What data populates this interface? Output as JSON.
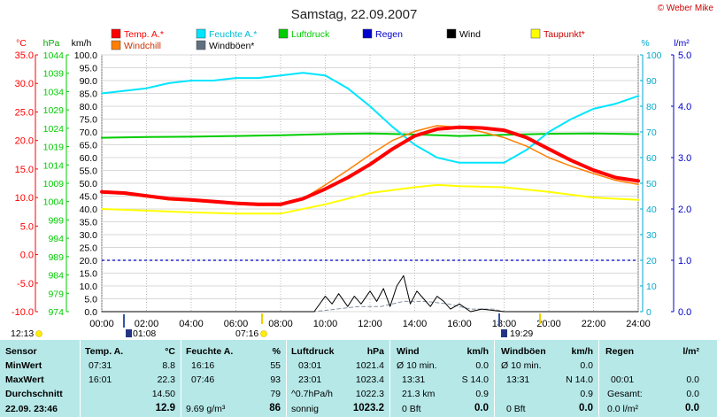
{
  "title": "Samstag, 22.09.2007",
  "credit": "© Weber Mike",
  "colors": {
    "temp": "#ff0000",
    "humidity": "#00e5ff",
    "pressure": "#00cc00",
    "rain": "#0000cc",
    "wind": "#000000",
    "dewpoint": "#ffff00",
    "windchill": "#ff7f00",
    "gust": "#607080"
  },
  "legend": {
    "row1": [
      {
        "label": "Temp. A.*",
        "color": "#ff0000"
      },
      {
        "label": "Feuchte A.*",
        "color": "#00e5ff"
      },
      {
        "label": "Luftdruck",
        "color": "#00cc00"
      },
      {
        "label": "Regen",
        "color": "#0000cc"
      },
      {
        "label": "Wind",
        "color": "#000000"
      },
      {
        "label": "Taupunkt*",
        "color": "#ffff00"
      }
    ],
    "row2": [
      {
        "label": "Windchill",
        "color": "#ff7f00"
      },
      {
        "label": "Windböen*",
        "color": "#607080"
      }
    ]
  },
  "chart_data": {
    "type": "line",
    "x_ticks": [
      "00:00",
      "02:00",
      "04:00",
      "06:00",
      "08:00",
      "10:00",
      "12:00",
      "14:00",
      "16:00",
      "18:00",
      "20:00",
      "22:00",
      "24:00"
    ],
    "axes": {
      "temp": {
        "unit": "°C",
        "ticks": [
          "35.0",
          "30.0",
          "25.0",
          "20.0",
          "15.0",
          "10.0",
          "5.0",
          "0.0",
          "-5.0",
          "-10.0"
        ],
        "ylim": [
          -10,
          35
        ],
        "color": "#ff0000"
      },
      "pressure": {
        "unit": "hPa",
        "ticks": [
          "1044",
          "1039",
          "1034",
          "1029",
          "1024",
          "1019",
          "1014",
          "1009",
          "1004",
          "999",
          "994",
          "989",
          "984",
          "979",
          "974"
        ],
        "ylim": [
          974,
          1044
        ],
        "color": "#00cc00"
      },
      "wind": {
        "unit": "km/h",
        "ticks": [
          "100.0",
          "95.0",
          "90.0",
          "85.0",
          "80.0",
          "75.0",
          "70.0",
          "65.0",
          "60.0",
          "55.0",
          "50.0",
          "45.0",
          "40.0",
          "35.0",
          "30.0",
          "25.0",
          "20.0",
          "15.0",
          "10.0",
          "5.0",
          "0.0"
        ],
        "ylim": [
          0,
          100
        ],
        "color": "#000000"
      },
      "humidity": {
        "unit": "%",
        "ticks": [
          "100",
          "90",
          "80",
          "70",
          "60",
          "50",
          "40",
          "30",
          "20",
          "10",
          "0"
        ],
        "ylim": [
          0,
          100
        ],
        "color": "#00aacc"
      },
      "rain": {
        "unit": "l/m²",
        "ticks": [
          "5.0",
          "4.0",
          "3.0",
          "2.0",
          "1.0",
          "0.0"
        ],
        "ylim": [
          0,
          5
        ],
        "color": "#0000cc"
      }
    },
    "series": [
      {
        "name": "Temp. A.*",
        "axis": "temp",
        "color": "#ff0000",
        "width": 4,
        "x": [
          0,
          1,
          2,
          3,
          4,
          5,
          6,
          7,
          8,
          9,
          10,
          11,
          12,
          13,
          14,
          15,
          16,
          17,
          18,
          19,
          20,
          21,
          22,
          23,
          24
        ],
        "y": [
          11.0,
          10.8,
          10.3,
          9.8,
          9.6,
          9.3,
          9.0,
          8.8,
          8.8,
          9.8,
          11.5,
          13.5,
          15.8,
          18.5,
          20.8,
          22.0,
          22.3,
          22.2,
          21.8,
          20.5,
          18.5,
          16.5,
          14.8,
          13.5,
          12.9
        ]
      },
      {
        "name": "Windchill",
        "axis": "temp",
        "color": "#ff7f00",
        "width": 1.5,
        "x": [
          0,
          1,
          2,
          3,
          4,
          5,
          6,
          7,
          8,
          9,
          10,
          11,
          12,
          13,
          14,
          15,
          16,
          17,
          18,
          19,
          20,
          21,
          22,
          23,
          24
        ],
        "y": [
          10.8,
          10.6,
          10.1,
          9.6,
          9.4,
          9.1,
          8.8,
          8.6,
          8.6,
          9.8,
          12.2,
          14.8,
          17.5,
          20.0,
          21.6,
          22.6,
          22.3,
          21.5,
          20.5,
          19.0,
          17.0,
          15.5,
          14.2,
          13.0,
          12.3
        ]
      },
      {
        "name": "Feuchte A.*",
        "axis": "humidity",
        "color": "#00e5ff",
        "width": 2,
        "x": [
          0,
          1,
          2,
          3,
          4,
          5,
          6,
          7,
          8,
          9,
          10,
          11,
          12,
          13,
          14,
          15,
          16,
          17,
          18,
          19,
          20,
          21,
          22,
          23,
          24
        ],
        "y": [
          85,
          86,
          87,
          89,
          90,
          90,
          91,
          91,
          92,
          93,
          92,
          87,
          80,
          72,
          65,
          60,
          58,
          58,
          58,
          63,
          70,
          75,
          79,
          81,
          84
        ]
      },
      {
        "name": "Luftdruck",
        "axis": "pressure",
        "color": "#00cc00",
        "width": 2,
        "x": [
          0,
          2,
          4,
          6,
          8,
          10,
          12,
          14,
          16,
          18,
          20,
          22,
          24
        ],
        "y": [
          1021.4,
          1021.6,
          1021.7,
          1021.9,
          1022.1,
          1022.4,
          1022.6,
          1022.3,
          1021.9,
          1022.2,
          1022.5,
          1022.6,
          1022.4
        ]
      },
      {
        "name": "Taupunkt*",
        "axis": "temp",
        "color": "#ffff00",
        "width": 2,
        "x": [
          0,
          2,
          4,
          6,
          8,
          10,
          12,
          14,
          15,
          16,
          18,
          20,
          22,
          24
        ],
        "y": [
          8.0,
          7.7,
          7.4,
          7.2,
          7.2,
          8.8,
          10.8,
          11.8,
          12.2,
          12.0,
          11.8,
          11.0,
          10.0,
          9.6
        ]
      },
      {
        "name": "Wind",
        "axis": "wind",
        "color": "#000000",
        "width": 1,
        "x": [
          0,
          9,
          9.5,
          10,
          10.3,
          10.6,
          11,
          11.3,
          11.6,
          12,
          12.3,
          12.6,
          12.9,
          13.2,
          13.5,
          13.8,
          14.1,
          14.4,
          14.7,
          15,
          15.3,
          15.6,
          16,
          16.5,
          17,
          18,
          24
        ],
        "y": [
          0,
          0,
          0,
          6,
          3,
          7,
          2,
          6,
          3,
          8,
          4,
          9,
          2,
          10,
          14,
          3,
          8,
          5,
          2,
          6,
          4,
          1,
          3,
          0,
          1,
          0,
          0
        ]
      },
      {
        "name": "Windböen*",
        "axis": "wind",
        "color": "#8090a0",
        "width": 1,
        "dash": "4,3",
        "x": [
          0,
          9.5,
          10.5,
          11.5,
          12.5,
          13.5,
          14.5,
          15.5,
          16.5,
          17.5,
          18,
          24
        ],
        "y": [
          0,
          0,
          1,
          2,
          2,
          4,
          4,
          3,
          1,
          1,
          0,
          0
        ]
      }
    ],
    "rain_level": 1.0,
    "events": [
      {
        "label": "12:13",
        "kind": "sun"
      },
      {
        "label": "01:08",
        "kind": "moon"
      },
      {
        "label": "07:16",
        "kind": "sun"
      },
      {
        "label": "19:29",
        "kind": "moon"
      }
    ]
  },
  "table": {
    "headers": {
      "sensor": "Sensor",
      "temp": "Temp. A.",
      "temp_unit": "°C",
      "hum": "Feuchte A.",
      "hum_unit": "%",
      "press": "Luftdruck",
      "press_unit": "hPa",
      "wind": "Wind",
      "wind_unit": "km/h",
      "gust": "Windböen",
      "gust_unit": "km/h",
      "rain": "Regen",
      "rain_unit": "l/m²"
    },
    "rows": {
      "min": "MinWert",
      "max": "MaxWert",
      "avg": "Durchschnitt",
      "now": "22.09. 23:46"
    },
    "temp": {
      "min_t": "07:31",
      "min_v": "8.8",
      "max_t": "16:01",
      "max_v": "22.3",
      "avg_v": "14.50",
      "now_v": "12.9"
    },
    "hum": {
      "min_t": "16:16",
      "min_v": "55",
      "max_t": "07:46",
      "max_v": "93",
      "avg_v": "79",
      "now_l": "9.69 g/m³",
      "now_v": "86"
    },
    "press": {
      "min_t": "03:01",
      "min_v": "1021.4",
      "max_t": "23:01",
      "max_v": "1023.4",
      "avg_l": "^0.7hPa/h",
      "avg_v": "1022.3",
      "now_l": "sonnig",
      "now_v": "1023.2"
    },
    "wind": {
      "r1_l": "Ø 10 min.",
      "r1_v": "0.0",
      "r2_l": "13:31",
      "r2_v": "S 14.0",
      "r3_l": "21.3 km",
      "r3_v": "0.9",
      "r4_l": "0 Bft",
      "r4_v": "0.0"
    },
    "gust": {
      "r1_l": "Ø 10 min.",
      "r1_v": "0.0",
      "r2_l": "13:31",
      "r2_v": "N 14.0",
      "r3_v": "0.9",
      "r4_l": "0 Bft",
      "r4_v": "0.0"
    },
    "rain": {
      "r2_l": "00:01",
      "r2_v": "0.0",
      "r3_l": "Gesamt:",
      "r3_v": "0.0",
      "r4_l": "0.0 l/m²",
      "r4_v": "0.0"
    }
  }
}
